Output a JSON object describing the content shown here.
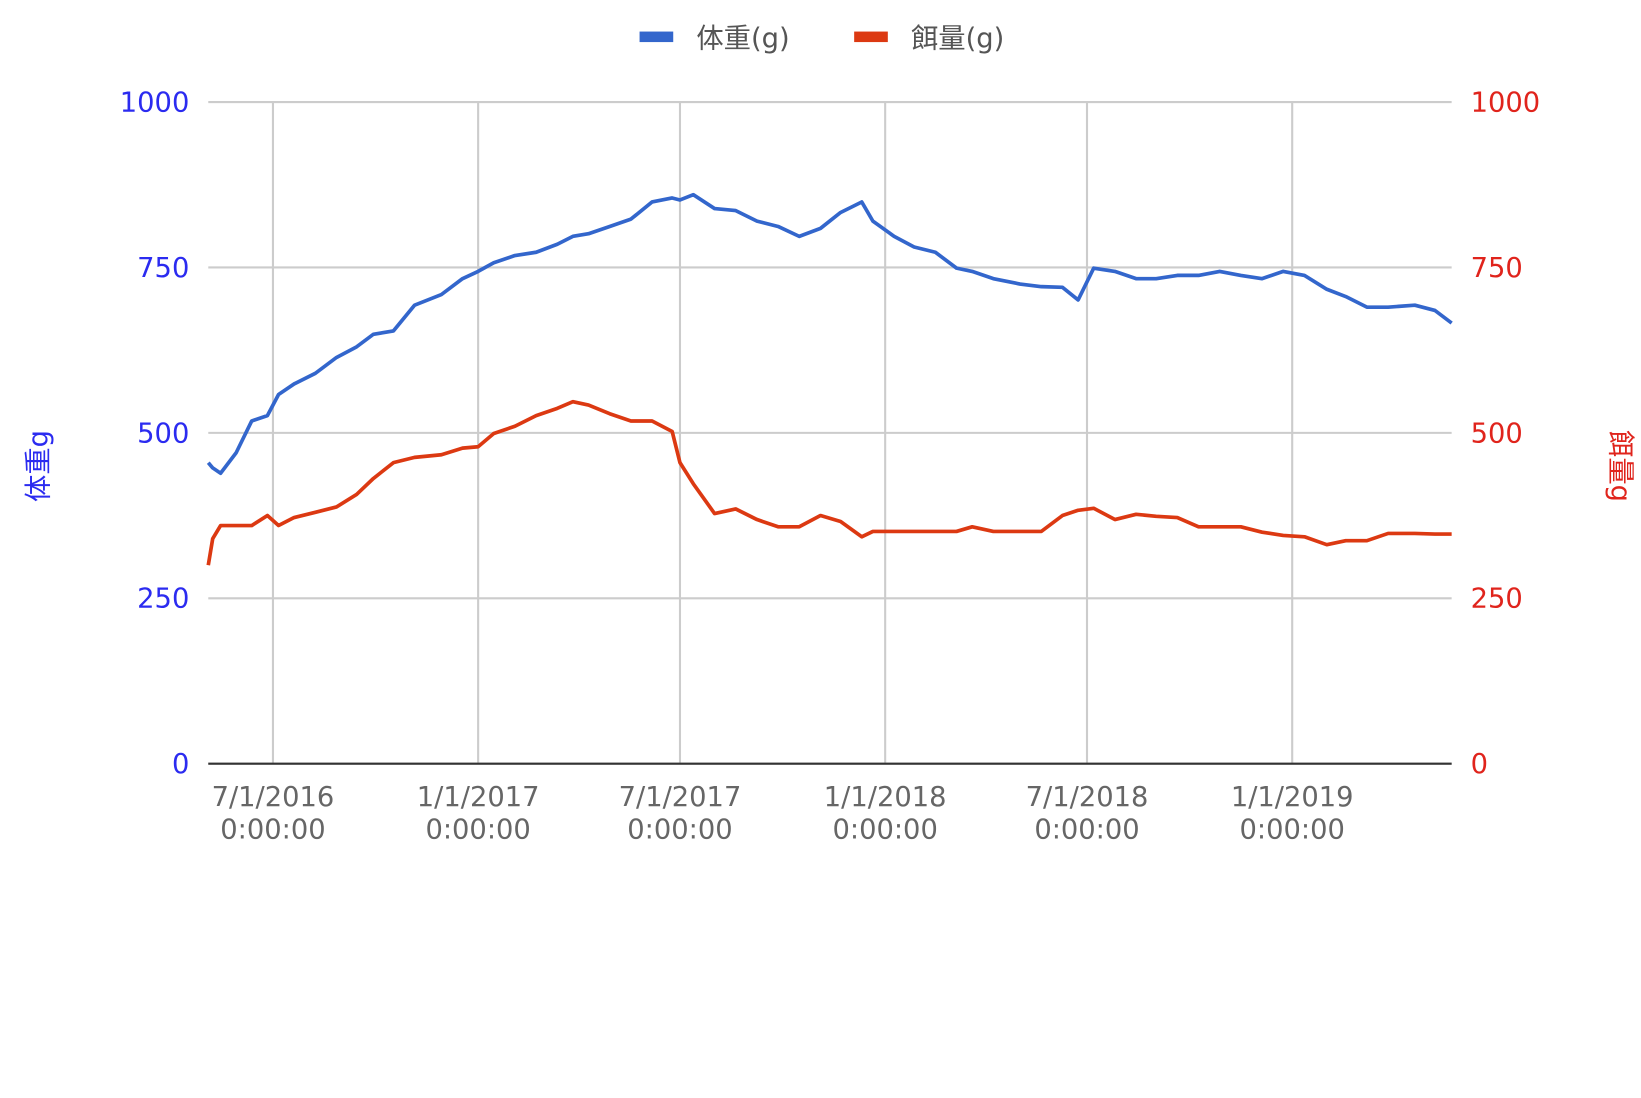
{
  "chart_data": {
    "type": "line",
    "legend": "top",
    "grid": true,
    "y_axis_label": "体重g",
    "y2_axis_label": "餌量g",
    "y_axis_color": "#2b2bf0",
    "y2_axis_color": "#e0241c",
    "x": [
      "2016-05-04",
      "2016-05-08",
      "2016-05-15",
      "2016-05-29",
      "2016-06-12",
      "2016-06-26",
      "2016-07-06",
      "2016-07-20",
      "2016-08-08",
      "2016-08-27",
      "2016-09-14",
      "2016-09-29",
      "2016-10-17",
      "2016-11-05",
      "2016-11-29",
      "2016-12-18",
      "2017-01-01",
      "2017-01-15",
      "2017-02-03",
      "2017-02-22",
      "2017-03-13",
      "2017-03-27",
      "2017-04-10",
      "2017-04-29",
      "2017-05-18",
      "2017-06-06",
      "2017-06-24",
      "2017-07-01",
      "2017-07-13",
      "2017-08-01",
      "2017-08-20",
      "2017-09-08",
      "2017-09-27",
      "2017-10-16",
      "2017-11-04",
      "2017-11-22",
      "2017-12-11",
      "2017-12-21",
      "2018-01-09",
      "2018-01-27",
      "2018-02-15",
      "2018-03-06",
      "2018-03-20",
      "2018-04-08",
      "2018-05-02",
      "2018-05-21",
      "2018-06-09",
      "2018-06-23",
      "2018-07-07",
      "2018-07-26",
      "2018-08-14",
      "2018-09-01",
      "2018-09-20",
      "2018-10-09",
      "2018-10-28",
      "2018-11-16",
      "2018-12-05",
      "2018-12-24",
      "2019-01-12",
      "2019-02-01",
      "2019-02-18",
      "2019-03-09",
      "2019-03-28",
      "2019-04-21",
      "2019-05-09",
      "2019-05-24"
    ],
    "xlim": [
      "2016-05-04",
      "2019-05-24"
    ],
    "xticks": [
      {
        "value": "2016-07-01",
        "label": "7/1/2016 0:00:00"
      },
      {
        "value": "2017-01-01",
        "label": "1/1/2017 0:00:00"
      },
      {
        "value": "2017-07-01",
        "label": "7/1/2017 0:00:00"
      },
      {
        "value": "2018-01-01",
        "label": "1/1/2018 0:00:00"
      },
      {
        "value": "2018-07-01",
        "label": "7/1/2018 0:00:00"
      },
      {
        "value": "2019-01-01",
        "label": "1/1/2019 0:00:00"
      }
    ],
    "ylim": [
      0,
      1000
    ],
    "yticks": [
      0,
      250,
      500,
      750,
      1000
    ],
    "y2lim": [
      0,
      1000
    ],
    "y2ticks": [
      0,
      250,
      500,
      750,
      1000
    ],
    "series": [
      {
        "name": "体重(g)",
        "color": "#3366cc",
        "axis": "y",
        "values": [
          455,
          447,
          439,
          470,
          518,
          526,
          558,
          574,
          590,
          614,
          630,
          649,
          654,
          693,
          709,
          733,
          744,
          757,
          768,
          773,
          785,
          797,
          801,
          812,
          823,
          849,
          855,
          852,
          860,
          839,
          836,
          820,
          812,
          797,
          809,
          833,
          849,
          820,
          797,
          781,
          773,
          749,
          744,
          733,
          725,
          721,
          720,
          701,
          749,
          744,
          733,
          733,
          738,
          738,
          744,
          738,
          733,
          744,
          738,
          717,
          706,
          690,
          690,
          693,
          685,
          666
        ]
      },
      {
        "name": "餌量(g)",
        "color": "#dc3912",
        "axis": "y2",
        "values": [
          300,
          340,
          360,
          360,
          360,
          375,
          360,
          372,
          380,
          388,
          407,
          431,
          455,
          463,
          467,
          477,
          479,
          499,
          510,
          526,
          537,
          547,
          542,
          529,
          518,
          518,
          502,
          455,
          423,
          378,
          385,
          369,
          358,
          358,
          375,
          366,
          343,
          351,
          351,
          351,
          351,
          351,
          358,
          351,
          351,
          351,
          375,
          383,
          386,
          369,
          377,
          374,
          372,
          358,
          358,
          358,
          350,
          345,
          343,
          331,
          337,
          337,
          348,
          348,
          347,
          347
        ]
      }
    ]
  }
}
